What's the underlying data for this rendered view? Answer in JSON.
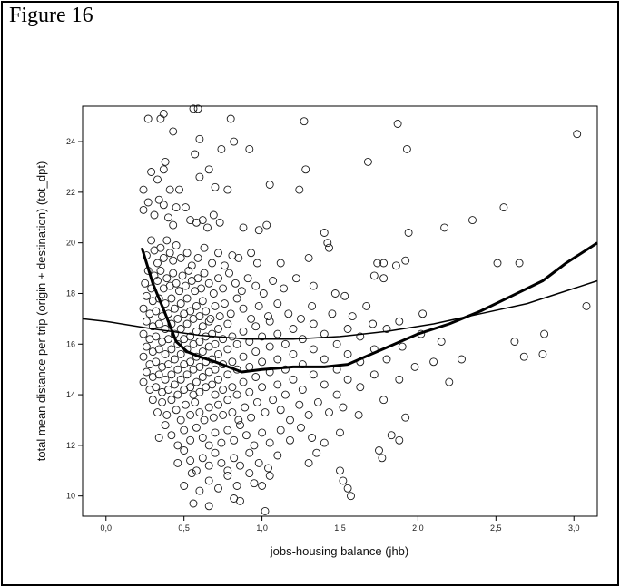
{
  "figure": {
    "title": "Figure 16"
  },
  "chart_data": {
    "type": "scatter",
    "xlabel": "jobs-housing balance (jhb)",
    "ylabel": "total mean distance per trip (origin + destination) (tot_dpt)",
    "xlim": [
      -0.15,
      3.15
    ],
    "ylim": [
      9.2,
      25.4
    ],
    "xticks": [
      "0,0",
      "0,5",
      "1,0",
      "1,5",
      "2,0",
      "2,5",
      "3,0"
    ],
    "yticks": [
      "10",
      "12",
      "14",
      "16",
      "18",
      "20",
      "22",
      "24"
    ],
    "grid": false,
    "marker": "open-circle",
    "points": [
      [
        0.27,
        24.9
      ],
      [
        0.35,
        24.9
      ],
      [
        0.37,
        25.1
      ],
      [
        0.43,
        24.4
      ],
      [
        0.56,
        25.3
      ],
      [
        0.59,
        25.3
      ],
      [
        0.8,
        24.9
      ],
      [
        0.82,
        24.0
      ],
      [
        0.6,
        24.1
      ],
      [
        0.74,
        23.7
      ],
      [
        0.92,
        23.7
      ],
      [
        1.27,
        24.8
      ],
      [
        1.87,
        24.7
      ],
      [
        1.93,
        23.7
      ],
      [
        3.02,
        24.3
      ],
      [
        0.24,
        22.1
      ],
      [
        0.29,
        22.8
      ],
      [
        0.33,
        22.5
      ],
      [
        0.37,
        22.9
      ],
      [
        0.38,
        23.2
      ],
      [
        0.41,
        22.1
      ],
      [
        0.47,
        22.1
      ],
      [
        0.57,
        23.5
      ],
      [
        0.6,
        22.6
      ],
      [
        0.66,
        22.9
      ],
      [
        0.7,
        22.2
      ],
      [
        0.78,
        22.1
      ],
      [
        1.05,
        22.3
      ],
      [
        1.24,
        22.1
      ],
      [
        1.28,
        22.9
      ],
      [
        1.68,
        23.2
      ],
      [
        0.24,
        21.3
      ],
      [
        0.27,
        21.6
      ],
      [
        0.31,
        21.1
      ],
      [
        0.34,
        21.7
      ],
      [
        0.37,
        21.5
      ],
      [
        0.4,
        21.0
      ],
      [
        0.43,
        20.7
      ],
      [
        0.45,
        21.4
      ],
      [
        0.51,
        21.4
      ],
      [
        0.54,
        20.9
      ],
      [
        0.58,
        20.8
      ],
      [
        0.62,
        20.9
      ],
      [
        0.65,
        20.6
      ],
      [
        0.69,
        21.1
      ],
      [
        0.73,
        20.8
      ],
      [
        0.88,
        20.6
      ],
      [
        0.98,
        20.5
      ],
      [
        1.03,
        20.7
      ],
      [
        1.4,
        20.4
      ],
      [
        1.42,
        20.0
      ],
      [
        1.43,
        19.8
      ],
      [
        1.94,
        20.4
      ],
      [
        2.17,
        20.6
      ],
      [
        2.35,
        20.9
      ],
      [
        2.55,
        21.4
      ],
      [
        0.26,
        19.5
      ],
      [
        0.29,
        20.1
      ],
      [
        0.31,
        19.7
      ],
      [
        0.33,
        19.2
      ],
      [
        0.35,
        19.8
      ],
      [
        0.37,
        19.4
      ],
      [
        0.39,
        20.1
      ],
      [
        0.41,
        19.6
      ],
      [
        0.43,
        19.3
      ],
      [
        0.45,
        19.9
      ],
      [
        0.48,
        19.4
      ],
      [
        0.52,
        19.6
      ],
      [
        0.55,
        19.1
      ],
      [
        0.59,
        19.4
      ],
      [
        0.63,
        19.8
      ],
      [
        0.68,
        19.2
      ],
      [
        0.72,
        19.6
      ],
      [
        0.76,
        19.1
      ],
      [
        0.81,
        19.5
      ],
      [
        0.85,
        19.4
      ],
      [
        0.93,
        19.6
      ],
      [
        0.97,
        19.2
      ],
      [
        1.12,
        19.2
      ],
      [
        1.3,
        19.4
      ],
      [
        1.74,
        19.2
      ],
      [
        1.78,
        19.2
      ],
      [
        1.86,
        19.1
      ],
      [
        1.92,
        19.3
      ],
      [
        2.51,
        19.2
      ],
      [
        2.65,
        19.2
      ],
      [
        0.25,
        18.4
      ],
      [
        0.27,
        18.9
      ],
      [
        0.29,
        18.2
      ],
      [
        0.31,
        18.7
      ],
      [
        0.33,
        18.5
      ],
      [
        0.35,
        18.9
      ],
      [
        0.37,
        18.2
      ],
      [
        0.39,
        18.6
      ],
      [
        0.41,
        18.3
      ],
      [
        0.43,
        18.8
      ],
      [
        0.45,
        18.4
      ],
      [
        0.47,
        18.1
      ],
      [
        0.49,
        18.7
      ],
      [
        0.51,
        18.3
      ],
      [
        0.53,
        18.9
      ],
      [
        0.55,
        18.5
      ],
      [
        0.57,
        18.1
      ],
      [
        0.59,
        18.6
      ],
      [
        0.61,
        18.2
      ],
      [
        0.63,
        18.8
      ],
      [
        0.66,
        18.4
      ],
      [
        0.69,
        18.0
      ],
      [
        0.72,
        18.6
      ],
      [
        0.75,
        18.2
      ],
      [
        0.79,
        18.8
      ],
      [
        0.83,
        18.4
      ],
      [
        0.87,
        18.1
      ],
      [
        0.91,
        18.6
      ],
      [
        0.96,
        18.3
      ],
      [
        1.01,
        18.0
      ],
      [
        1.07,
        18.5
      ],
      [
        1.14,
        18.2
      ],
      [
        1.22,
        18.6
      ],
      [
        1.33,
        18.3
      ],
      [
        1.47,
        18.0
      ],
      [
        1.53,
        17.9
      ],
      [
        1.72,
        18.7
      ],
      [
        1.78,
        18.6
      ],
      [
        3.08,
        17.5
      ],
      [
        0.24,
        17.4
      ],
      [
        0.26,
        17.9
      ],
      [
        0.28,
        17.2
      ],
      [
        0.3,
        17.7
      ],
      [
        0.32,
        17.3
      ],
      [
        0.34,
        17.8
      ],
      [
        0.36,
        17.1
      ],
      [
        0.38,
        17.6
      ],
      [
        0.4,
        17.2
      ],
      [
        0.42,
        17.8
      ],
      [
        0.44,
        17.4
      ],
      [
        0.46,
        17.0
      ],
      [
        0.48,
        17.6
      ],
      [
        0.5,
        17.2
      ],
      [
        0.52,
        17.8
      ],
      [
        0.54,
        17.3
      ],
      [
        0.56,
        17.0
      ],
      [
        0.58,
        17.5
      ],
      [
        0.6,
        17.1
      ],
      [
        0.62,
        17.7
      ],
      [
        0.64,
        17.3
      ],
      [
        0.67,
        17.0
      ],
      [
        0.7,
        17.5
      ],
      [
        0.73,
        17.1
      ],
      [
        0.76,
        17.6
      ],
      [
        0.8,
        17.2
      ],
      [
        0.84,
        17.8
      ],
      [
        0.88,
        17.4
      ],
      [
        0.93,
        17.0
      ],
      [
        0.98,
        17.5
      ],
      [
        1.04,
        17.1
      ],
      [
        1.1,
        17.6
      ],
      [
        1.17,
        17.2
      ],
      [
        1.25,
        17.0
      ],
      [
        1.32,
        17.5
      ],
      [
        1.45,
        17.2
      ],
      [
        1.58,
        17.1
      ],
      [
        1.67,
        17.5
      ],
      [
        2.03,
        17.2
      ],
      [
        0.24,
        16.4
      ],
      [
        0.26,
        16.9
      ],
      [
        0.28,
        16.2
      ],
      [
        0.3,
        16.7
      ],
      [
        0.32,
        16.3
      ],
      [
        0.34,
        16.8
      ],
      [
        0.36,
        16.1
      ],
      [
        0.38,
        16.6
      ],
      [
        0.4,
        16.2
      ],
      [
        0.42,
        16.8
      ],
      [
        0.44,
        16.4
      ],
      [
        0.46,
        16.0
      ],
      [
        0.48,
        16.6
      ],
      [
        0.5,
        16.2
      ],
      [
        0.52,
        16.8
      ],
      [
        0.54,
        16.3
      ],
      [
        0.56,
        16.0
      ],
      [
        0.58,
        16.5
      ],
      [
        0.6,
        16.1
      ],
      [
        0.62,
        16.7
      ],
      [
        0.64,
        16.3
      ],
      [
        0.66,
        16.9
      ],
      [
        0.68,
        16.4
      ],
      [
        0.7,
        16.0
      ],
      [
        0.72,
        16.6
      ],
      [
        0.75,
        16.2
      ],
      [
        0.78,
        16.8
      ],
      [
        0.81,
        16.3
      ],
      [
        0.84,
        16.0
      ],
      [
        0.88,
        16.5
      ],
      [
        0.92,
        16.1
      ],
      [
        0.96,
        16.7
      ],
      [
        1.0,
        16.3
      ],
      [
        1.05,
        16.9
      ],
      [
        1.1,
        16.4
      ],
      [
        1.15,
        16.0
      ],
      [
        1.2,
        16.6
      ],
      [
        1.26,
        16.2
      ],
      [
        1.33,
        16.8
      ],
      [
        1.4,
        16.4
      ],
      [
        1.48,
        16.0
      ],
      [
        1.55,
        16.6
      ],
      [
        1.63,
        16.3
      ],
      [
        1.71,
        16.8
      ],
      [
        1.8,
        16.6
      ],
      [
        1.88,
        16.9
      ],
      [
        2.02,
        16.4
      ],
      [
        2.15,
        16.1
      ],
      [
        2.62,
        16.1
      ],
      [
        2.81,
        16.4
      ],
      [
        0.24,
        15.5
      ],
      [
        0.26,
        15.9
      ],
      [
        0.28,
        15.2
      ],
      [
        0.3,
        15.7
      ],
      [
        0.32,
        15.3
      ],
      [
        0.34,
        15.8
      ],
      [
        0.36,
        15.1
      ],
      [
        0.38,
        15.6
      ],
      [
        0.4,
        15.2
      ],
      [
        0.42,
        15.8
      ],
      [
        0.44,
        15.4
      ],
      [
        0.46,
        15.0
      ],
      [
        0.48,
        15.6
      ],
      [
        0.5,
        15.2
      ],
      [
        0.52,
        15.8
      ],
      [
        0.54,
        15.3
      ],
      [
        0.56,
        15.0
      ],
      [
        0.58,
        15.5
      ],
      [
        0.6,
        15.1
      ],
      [
        0.62,
        15.7
      ],
      [
        0.64,
        15.3
      ],
      [
        0.66,
        15.9
      ],
      [
        0.68,
        15.4
      ],
      [
        0.7,
        15.0
      ],
      [
        0.72,
        15.6
      ],
      [
        0.75,
        15.2
      ],
      [
        0.78,
        15.8
      ],
      [
        0.81,
        15.3
      ],
      [
        0.84,
        15.0
      ],
      [
        0.88,
        15.5
      ],
      [
        0.92,
        15.1
      ],
      [
        0.96,
        15.7
      ],
      [
        1.0,
        15.3
      ],
      [
        1.05,
        15.9
      ],
      [
        1.1,
        15.4
      ],
      [
        1.15,
        15.0
      ],
      [
        1.2,
        15.6
      ],
      [
        1.26,
        15.2
      ],
      [
        1.33,
        15.8
      ],
      [
        1.4,
        15.4
      ],
      [
        1.48,
        15.0
      ],
      [
        1.55,
        15.6
      ],
      [
        1.63,
        15.3
      ],
      [
        1.72,
        15.8
      ],
      [
        1.8,
        15.4
      ],
      [
        1.9,
        15.9
      ],
      [
        1.98,
        15.1
      ],
      [
        2.1,
        15.3
      ],
      [
        2.28,
        15.4
      ],
      [
        2.68,
        15.5
      ],
      [
        2.8,
        15.6
      ],
      [
        0.24,
        14.5
      ],
      [
        0.26,
        14.9
      ],
      [
        0.28,
        14.2
      ],
      [
        0.3,
        14.7
      ],
      [
        0.32,
        14.3
      ],
      [
        0.34,
        14.8
      ],
      [
        0.36,
        14.1
      ],
      [
        0.38,
        14.6
      ],
      [
        0.4,
        14.2
      ],
      [
        0.42,
        14.8
      ],
      [
        0.44,
        14.4
      ],
      [
        0.46,
        14.0
      ],
      [
        0.48,
        14.6
      ],
      [
        0.5,
        14.2
      ],
      [
        0.52,
        14.8
      ],
      [
        0.54,
        14.3
      ],
      [
        0.56,
        14.0
      ],
      [
        0.58,
        14.5
      ],
      [
        0.6,
        14.1
      ],
      [
        0.62,
        14.7
      ],
      [
        0.64,
        14.3
      ],
      [
        0.66,
        14.9
      ],
      [
        0.68,
        14.4
      ],
      [
        0.7,
        14.0
      ],
      [
        0.72,
        14.6
      ],
      [
        0.75,
        14.2
      ],
      [
        0.78,
        14.8
      ],
      [
        0.81,
        14.3
      ],
      [
        0.84,
        14.0
      ],
      [
        0.88,
        14.5
      ],
      [
        0.92,
        14.1
      ],
      [
        0.96,
        14.7
      ],
      [
        1.0,
        14.3
      ],
      [
        1.05,
        14.9
      ],
      [
        1.1,
        14.4
      ],
      [
        1.15,
        14.0
      ],
      [
        1.2,
        14.6
      ],
      [
        1.26,
        14.2
      ],
      [
        1.33,
        14.8
      ],
      [
        1.4,
        14.4
      ],
      [
        1.48,
        14.0
      ],
      [
        1.55,
        14.6
      ],
      [
        1.63,
        14.3
      ],
      [
        1.72,
        14.8
      ],
      [
        1.88,
        14.6
      ],
      [
        2.2,
        14.5
      ],
      [
        0.3,
        13.8
      ],
      [
        0.33,
        13.3
      ],
      [
        0.36,
        13.7
      ],
      [
        0.39,
        13.2
      ],
      [
        0.42,
        13.8
      ],
      [
        0.45,
        13.4
      ],
      [
        0.48,
        13.0
      ],
      [
        0.51,
        13.6
      ],
      [
        0.54,
        13.2
      ],
      [
        0.57,
        13.7
      ],
      [
        0.6,
        13.3
      ],
      [
        0.63,
        13.0
      ],
      [
        0.66,
        13.5
      ],
      [
        0.69,
        13.1
      ],
      [
        0.72,
        13.6
      ],
      [
        0.75,
        13.2
      ],
      [
        0.78,
        13.8
      ],
      [
        0.81,
        13.3
      ],
      [
        0.85,
        13.0
      ],
      [
        0.89,
        13.5
      ],
      [
        0.93,
        13.1
      ],
      [
        0.97,
        13.7
      ],
      [
        1.02,
        13.3
      ],
      [
        1.07,
        13.8
      ],
      [
        1.12,
        13.4
      ],
      [
        1.18,
        13.0
      ],
      [
        1.24,
        13.6
      ],
      [
        1.3,
        13.2
      ],
      [
        1.36,
        13.7
      ],
      [
        1.43,
        13.3
      ],
      [
        1.52,
        13.5
      ],
      [
        1.62,
        13.2
      ],
      [
        1.78,
        13.8
      ],
      [
        1.92,
        13.1
      ],
      [
        0.34,
        12.3
      ],
      [
        0.38,
        12.8
      ],
      [
        0.42,
        12.4
      ],
      [
        0.46,
        12.0
      ],
      [
        0.5,
        12.6
      ],
      [
        0.54,
        12.2
      ],
      [
        0.58,
        12.7
      ],
      [
        0.62,
        12.3
      ],
      [
        0.66,
        12.0
      ],
      [
        0.7,
        12.5
      ],
      [
        0.74,
        12.1
      ],
      [
        0.78,
        12.6
      ],
      [
        0.82,
        12.2
      ],
      [
        0.86,
        12.8
      ],
      [
        0.9,
        12.4
      ],
      [
        0.95,
        12.0
      ],
      [
        1.0,
        12.5
      ],
      [
        1.05,
        12.1
      ],
      [
        1.12,
        12.6
      ],
      [
        1.18,
        12.2
      ],
      [
        1.25,
        12.7
      ],
      [
        1.32,
        12.3
      ],
      [
        1.4,
        12.1
      ],
      [
        1.5,
        12.5
      ],
      [
        1.83,
        12.4
      ],
      [
        1.88,
        12.2
      ],
      [
        0.46,
        11.3
      ],
      [
        0.5,
        11.8
      ],
      [
        0.54,
        11.4
      ],
      [
        0.58,
        11.0
      ],
      [
        0.62,
        11.5
      ],
      [
        0.66,
        11.2
      ],
      [
        0.7,
        11.7
      ],
      [
        0.74,
        11.3
      ],
      [
        0.78,
        11.0
      ],
      [
        0.82,
        11.5
      ],
      [
        0.86,
        11.2
      ],
      [
        0.92,
        11.7
      ],
      [
        0.98,
        11.3
      ],
      [
        1.04,
        11.1
      ],
      [
        1.1,
        11.6
      ],
      [
        1.3,
        11.3
      ],
      [
        1.35,
        11.7
      ],
      [
        1.5,
        11.0
      ],
      [
        1.75,
        11.8
      ],
      [
        1.77,
        11.5
      ],
      [
        0.5,
        10.4
      ],
      [
        0.55,
        10.9
      ],
      [
        0.6,
        10.2
      ],
      [
        0.66,
        10.6
      ],
      [
        0.72,
        10.3
      ],
      [
        0.78,
        10.8
      ],
      [
        0.84,
        10.4
      ],
      [
        0.92,
        10.9
      ],
      [
        0.95,
        10.5
      ],
      [
        1.0,
        10.4
      ],
      [
        1.05,
        10.8
      ],
      [
        1.52,
        10.6
      ],
      [
        1.55,
        10.3
      ],
      [
        0.56,
        9.7
      ],
      [
        0.66,
        9.6
      ],
      [
        0.82,
        9.9
      ],
      [
        0.86,
        9.8
      ],
      [
        1.02,
        9.4
      ],
      [
        1.57,
        10.0
      ]
    ],
    "series": [
      {
        "style": "thick",
        "x": [
          0.23,
          0.3,
          0.38,
          0.45,
          0.52,
          0.6,
          0.7,
          0.87,
          1.0,
          1.2,
          1.4,
          1.55,
          1.7,
          1.85,
          2.0,
          2.2,
          2.4,
          2.6,
          2.8,
          2.95,
          3.15
        ],
        "y": [
          19.8,
          18.4,
          17.2,
          16.1,
          15.7,
          15.5,
          15.3,
          14.9,
          15.0,
          15.1,
          15.1,
          15.2,
          15.6,
          16.0,
          16.4,
          16.8,
          17.3,
          17.9,
          18.5,
          19.2,
          20.0
        ]
      },
      {
        "style": "thin",
        "x": [
          -0.15,
          0.0,
          0.3,
          0.6,
          0.9,
          1.2,
          1.5,
          1.8,
          2.1,
          2.4,
          2.7,
          3.0,
          3.15
        ],
        "y": [
          17.0,
          16.9,
          16.6,
          16.35,
          16.2,
          16.2,
          16.3,
          16.5,
          16.8,
          17.2,
          17.6,
          18.2,
          18.5
        ]
      }
    ]
  }
}
